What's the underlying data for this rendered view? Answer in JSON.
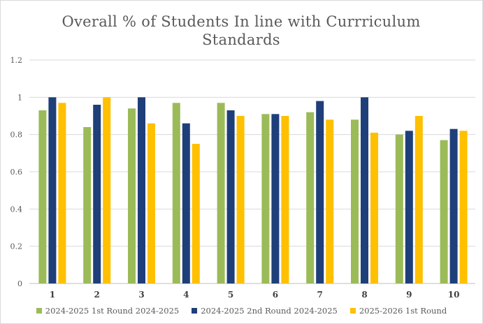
{
  "chart_data": {
    "type": "bar",
    "title": "Overall % of Students In line with Currriculum Standards",
    "xlabel": "",
    "ylabel": "",
    "categories": [
      "1",
      "2",
      "3",
      "4",
      "5",
      "6",
      "7",
      "8",
      "9",
      "10"
    ],
    "ylim": [
      0,
      1.2
    ],
    "yticks": [
      "0",
      "0.2",
      "0.4",
      "0.6",
      "0.8",
      "1",
      "1.2"
    ],
    "grid": true,
    "legend_position": "bottom",
    "series": [
      {
        "name": "2024-2025 1st Round 2024-2025",
        "color": "#9BBB59",
        "values": [
          0.93,
          0.84,
          0.94,
          0.97,
          0.97,
          0.91,
          0.92,
          0.88,
          0.8,
          0.77
        ]
      },
      {
        "name": "2024-2025 2nd Round 2024-2025",
        "color": "#1F3F7A",
        "values": [
          1.0,
          0.96,
          1.0,
          0.86,
          0.93,
          0.91,
          0.98,
          1.0,
          0.82,
          0.83
        ]
      },
      {
        "name": "2025-2026 1st Round",
        "color": "#FFC000",
        "values": [
          0.97,
          1.0,
          0.86,
          0.75,
          0.9,
          0.9,
          0.88,
          0.81,
          0.9,
          0.82
        ]
      }
    ]
  }
}
